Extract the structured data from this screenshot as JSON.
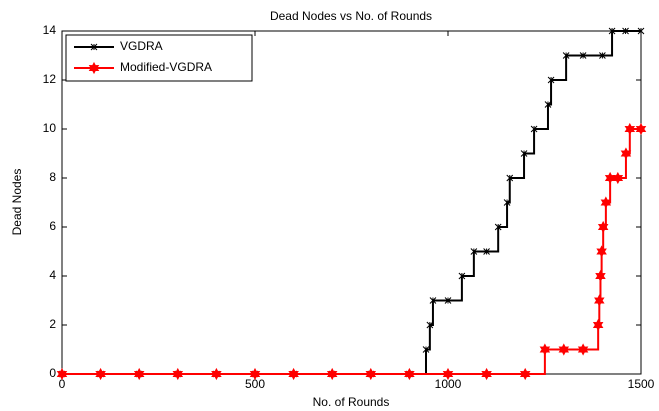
{
  "chart_data": {
    "type": "line",
    "title": "Dead Nodes vs  No. of Rounds",
    "xlabel": "No. of Rounds",
    "ylabel": "Dead Nodes",
    "xlim": [
      0,
      1500
    ],
    "xticks": [
      0,
      500,
      1000,
      1500
    ],
    "ylim": [
      0,
      14
    ],
    "yticks": [
      0,
      2,
      4,
      6,
      8,
      10,
      12,
      14
    ],
    "grid": false,
    "step": true,
    "legend": "upper left",
    "series": [
      {
        "name": "VGDRA",
        "color": "#000000",
        "marker": "x",
        "x": [
          0,
          100,
          200,
          300,
          400,
          500,
          600,
          700,
          800,
          900,
          943,
          953,
          961,
          1000,
          1036,
          1067,
          1100,
          1130,
          1153,
          1160,
          1197,
          1223,
          1259,
          1267,
          1306,
          1350,
          1400,
          1425,
          1460,
          1500
        ],
        "values": [
          0,
          0,
          0,
          0,
          0,
          0,
          0,
          0,
          0,
          0,
          1,
          2,
          3,
          3,
          4,
          5,
          5,
          6,
          7,
          8,
          9,
          10,
          11,
          12,
          13,
          13,
          13,
          14,
          14,
          14
        ]
      },
      {
        "name": "Modified-VGDRA",
        "color": "#ff0000",
        "marker": "hexagram",
        "x": [
          0,
          100,
          200,
          300,
          400,
          500,
          600,
          700,
          800,
          900,
          1000,
          1100,
          1200,
          1251,
          1300,
          1350,
          1389,
          1392,
          1395,
          1398,
          1402,
          1409,
          1420,
          1440,
          1461,
          1471,
          1500
        ],
        "values": [
          0,
          0,
          0,
          0,
          0,
          0,
          0,
          0,
          0,
          0,
          0,
          0,
          0,
          1,
          1,
          1,
          2,
          3,
          4,
          5,
          6,
          7,
          8,
          8,
          9,
          10,
          10
        ]
      }
    ]
  }
}
